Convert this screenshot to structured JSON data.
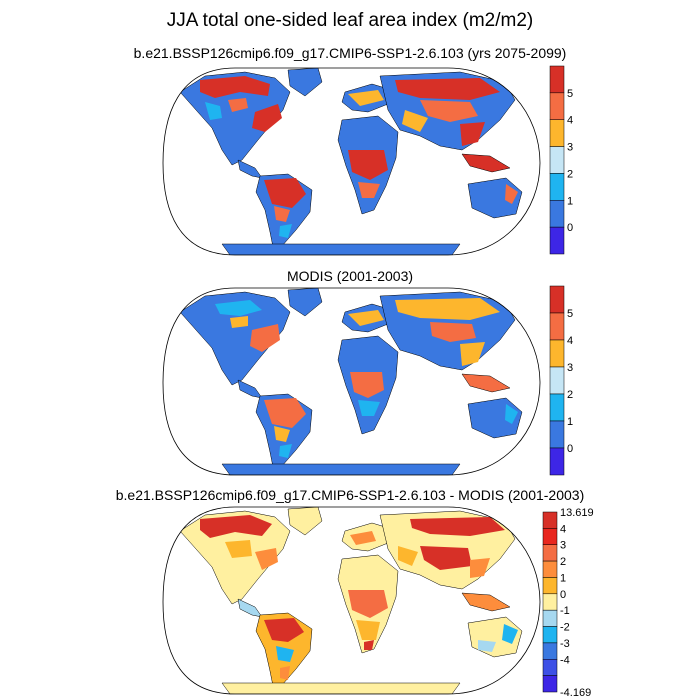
{
  "title": "JJA total one-sided leaf area index (m2/m2)",
  "panels": [
    {
      "title": "b.e21.BSSP126cmip6.f09_g17.CMIP6-SSP1-2.6.103 (yrs 2075-2099)",
      "colorbar": {
        "labels": [
          "5",
          "4",
          "3",
          "2",
          "1",
          "0"
        ],
        "colors": [
          "#d73027",
          "#f46d43",
          "#fdb62d",
          "#c6e6f5",
          "#1fb4f0",
          "#3a78e0",
          "#3d26e6"
        ]
      }
    },
    {
      "title": "MODIS (2001-2003)",
      "colorbar": {
        "labels": [
          "5",
          "4",
          "3",
          "2",
          "1",
          "0"
        ],
        "colors": [
          "#d73027",
          "#f46d43",
          "#fdb62d",
          "#c6e6f5",
          "#1fb4f0",
          "#3a78e0",
          "#3d26e6"
        ]
      }
    },
    {
      "title": "b.e21.BSSP126cmip6.f09_g17.CMIP6-SSP1-2.6.103 - MODIS (2001-2003)",
      "colorbar": {
        "labels": [
          "13.619",
          "4",
          "3",
          "2",
          "1",
          "0",
          "-1",
          "-2",
          "-3",
          "-4",
          "-4.169"
        ],
        "colors": [
          "#d73027",
          "#e8261e",
          "#f46d43",
          "#fd8d3c",
          "#fdb62d",
          "#fff0a0",
          "#a6d8f0",
          "#1fb4f0",
          "#3a78e0",
          "#3d50e6",
          "#3d26e6"
        ]
      }
    }
  ]
}
